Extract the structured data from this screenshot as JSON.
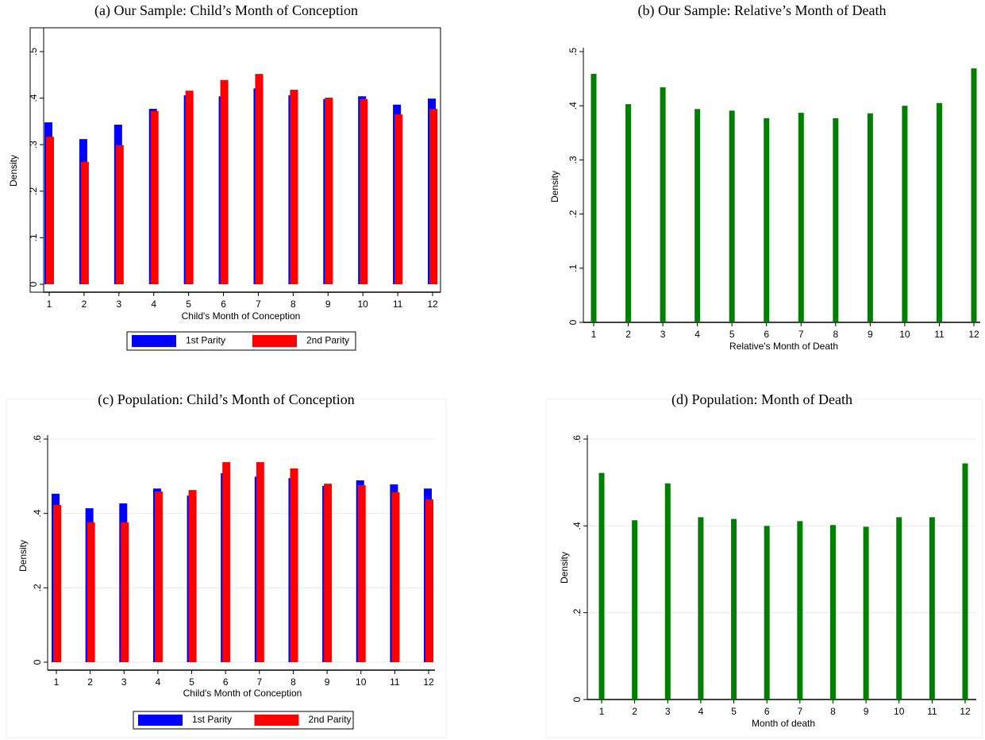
{
  "chart_data": [
    {
      "type": "bar",
      "title": "(a) Our Sample: Child’s Month of Conception",
      "xlabel": "Child's Month of Conception",
      "ylabel": "Density",
      "categories": [
        1,
        2,
        3,
        4,
        5,
        6,
        7,
        8,
        9,
        10,
        11,
        12
      ],
      "series": [
        {
          "name": "1st Parity",
          "color": "#0000ff",
          "values": [
            0.348,
            0.312,
            0.343,
            0.377,
            0.406,
            0.404,
            0.421,
            0.406,
            0.398,
            0.404,
            0.386,
            0.399
          ]
        },
        {
          "name": "2nd Parity",
          "color": "#ff0000",
          "values": [
            0.317,
            0.263,
            0.299,
            0.372,
            0.416,
            0.439,
            0.452,
            0.418,
            0.401,
            0.398,
            0.365,
            0.377
          ]
        }
      ],
      "ylim": [
        0,
        0.5
      ],
      "yticks": [
        0,
        {
          "value": 0.1,
          "label": ".1"
        },
        {
          "value": 0.2,
          "label": ".2"
        },
        {
          "value": 0.3,
          "label": ".3"
        },
        {
          "value": 0.4,
          "label": ".4"
        },
        {
          "value": 0.5,
          "label": ".5"
        }
      ],
      "grid": false,
      "legend": "bottom"
    },
    {
      "type": "bar",
      "title": "(b) Our Sample: Relative’s Month of Death",
      "xlabel": "Relative's Month of Death",
      "ylabel": "Density",
      "categories": [
        1,
        2,
        3,
        4,
        5,
        6,
        7,
        8,
        9,
        10,
        11,
        12
      ],
      "series": [
        {
          "color": "#007f00",
          "values": [
            0.459,
            0.403,
            0.434,
            0.394,
            0.391,
            0.377,
            0.387,
            0.377,
            0.386,
            0.4,
            0.405,
            0.469
          ]
        }
      ],
      "ylim": [
        0,
        0.5
      ],
      "yticks": [
        0,
        {
          "value": 0.1,
          "label": ".1"
        },
        {
          "value": 0.2,
          "label": ".2"
        },
        {
          "value": 0.3,
          "label": ".3"
        },
        {
          "value": 0.4,
          "label": ".4"
        },
        {
          "value": 0.5,
          "label": ".5"
        }
      ],
      "grid": false
    },
    {
      "type": "bar",
      "title": "(c) Population: Child’s Month of Conception",
      "xlabel": "Child's Month of Conception",
      "ylabel": "Density",
      "categories": [
        1,
        2,
        3,
        4,
        5,
        6,
        7,
        8,
        9,
        10,
        11,
        12
      ],
      "series": [
        {
          "name": "1st Parity",
          "color": "#0000ff",
          "values": [
            0.453,
            0.414,
            0.427,
            0.467,
            0.448,
            0.508,
            0.499,
            0.495,
            0.474,
            0.489,
            0.478,
            0.467
          ]
        },
        {
          "name": "2nd Parity",
          "color": "#ff0000",
          "values": [
            0.423,
            0.376,
            0.376,
            0.459,
            0.463,
            0.538,
            0.538,
            0.521,
            0.48,
            0.476,
            0.457,
            0.438
          ]
        }
      ],
      "ylim": [
        0,
        0.6
      ],
      "yticks": [
        0,
        {
          "value": 0.2,
          "label": ".2"
        },
        {
          "value": 0.4,
          "label": ".4"
        },
        {
          "value": 0.6,
          "label": ".6"
        }
      ],
      "grid": true,
      "legend": "bottom"
    },
    {
      "type": "bar",
      "title": "(d) Population: Month of Death",
      "xlabel": "Month of death",
      "ylabel": "Density",
      "categories": [
        1,
        2,
        3,
        4,
        5,
        6,
        7,
        8,
        9,
        10,
        11,
        12
      ],
      "series": [
        {
          "color": "#007f00",
          "values": [
            0.522,
            0.413,
            0.498,
            0.42,
            0.416,
            0.4,
            0.411,
            0.402,
            0.398,
            0.42,
            0.42,
            0.544
          ]
        }
      ],
      "ylim": [
        0,
        0.6
      ],
      "yticks": [
        0,
        {
          "value": 0.2,
          "label": ".2"
        },
        {
          "value": 0.4,
          "label": ".4"
        },
        {
          "value": 0.6,
          "label": ".6"
        }
      ],
      "grid": true
    }
  ]
}
